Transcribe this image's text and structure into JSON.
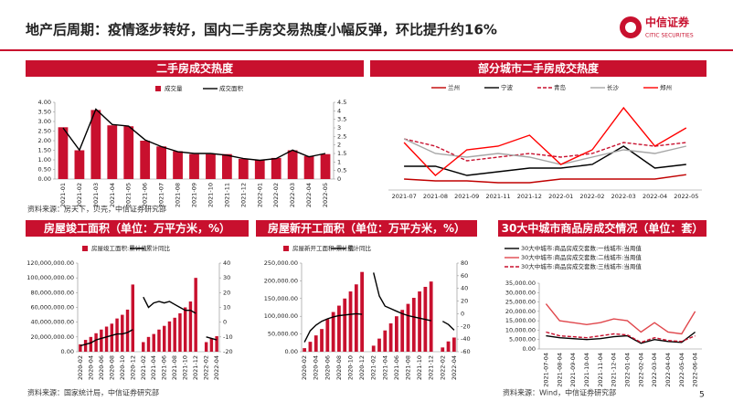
{
  "header": {
    "title": "地产后周期：疫情逐步转好，国内二手房交易热度小幅反弹，环比提升约16%",
    "logo_name": "中信证券",
    "logo_en": "CITIC SECURITIES"
  },
  "page_number": "5",
  "sources": [
    "资料来源：房天下，贝壳，中信证券研究部",
    "资料来源：国家统计局，中信证券研究部",
    "资料来源：Wind，中信证券研究部"
  ],
  "chart_data": [
    {
      "type": "bar",
      "title": "二手房成交热度",
      "categories": [
        "2021-01",
        "2021-02",
        "2021-03",
        "2021-04",
        "2021-05",
        "2021-06",
        "2021-07",
        "2021-08",
        "2021-09",
        "2021-10",
        "2021-11",
        "2021-12",
        "2022-01",
        "2022-02",
        "2022-03",
        "2022-04",
        "2022-05"
      ],
      "series": [
        {
          "name": "成交量",
          "type": "bar",
          "color": "#c8102e",
          "values": [
            2.7,
            1.5,
            3.6,
            2.8,
            2.75,
            2.0,
            1.7,
            1.45,
            1.3,
            1.3,
            1.3,
            1.05,
            1.0,
            1.1,
            1.5,
            1.2,
            1.3
          ]
        },
        {
          "name": "成交面积",
          "type": "line",
          "axis": "y2",
          "color": "#000000",
          "values": [
            3.0,
            1.7,
            4.1,
            3.2,
            3.1,
            2.3,
            1.9,
            1.6,
            1.5,
            1.5,
            1.4,
            1.2,
            1.1,
            1.2,
            1.7,
            1.3,
            1.5
          ]
        }
      ],
      "ylim": [
        0,
        4
      ],
      "yticks": [
        {
          "value": 0,
          "label": "0.00"
        },
        {
          "value": 0.5,
          "label": "0.50"
        },
        {
          "value": 1,
          "label": "1.00"
        },
        {
          "value": 1.5,
          "label": "1.50"
        },
        {
          "value": 2,
          "label": "2.00"
        },
        {
          "value": 2.5,
          "label": "2.50"
        },
        {
          "value": 3,
          "label": "3.00"
        },
        {
          "value": 3.5,
          "label": "3.50"
        },
        {
          "value": 4,
          "label": "4.00"
        }
      ],
      "y2lim": [
        0,
        4.5
      ],
      "y2ticks": [
        0,
        0.5,
        1,
        1.5,
        2,
        2.5,
        3,
        3.5,
        4,
        4.5
      ]
    },
    {
      "type": "line",
      "title": "部分城市二手房成交热度",
      "categories": [
        "2021-07",
        "2021-08",
        "2021-09",
        "2021-11",
        "2021-12",
        "2022-01",
        "2022-02",
        "2022-03",
        "2022-04",
        "2022-05"
      ],
      "series": [
        {
          "name": "兰州",
          "color": "#c00000",
          "values": [
            300,
            250,
            250,
            200,
            200,
            300,
            300,
            300,
            300,
            420
          ]
        },
        {
          "name": "宁波",
          "color": "#000000",
          "values": [
            650,
            650,
            400,
            500,
            600,
            600,
            700,
            1200,
            600,
            700
          ]
        },
        {
          "name": "青岛",
          "color": "#c8102e",
          "dashed": true,
          "values": [
            1400,
            1200,
            800,
            900,
            1000,
            900,
            1000,
            1300,
            1200,
            1300
          ]
        },
        {
          "name": "长沙",
          "color": "#a6a6a6",
          "values": [
            1400,
            1000,
            900,
            1000,
            900,
            700,
            900,
            1100,
            1000,
            1200
          ]
        },
        {
          "name": "郑州",
          "color": "#ff0000",
          "values": [
            1300,
            400,
            1100,
            1200,
            1500,
            700,
            1100,
            2250,
            1200,
            1700
          ]
        }
      ],
      "ylim": [
        0,
        2500
      ]
    },
    {
      "type": "bar",
      "title": "房屋竣工面积（单位：万平方米，%）",
      "categories": [
        "2020-02",
        null,
        "2020-04",
        null,
        "2020-06",
        null,
        "2020-08",
        null,
        "2020-10",
        null,
        "2020-12",
        null,
        "2021-02",
        null,
        "2021-04",
        null,
        "2021-06",
        null,
        "2021-08",
        null,
        "2021-10",
        null,
        "2021-12",
        null,
        "2022-02",
        null,
        "2022-04"
      ],
      "series": [
        {
          "name": "房屋竣工面积:累计值",
          "type": "bar",
          "color": "#c8102e",
          "values": [
            10000000,
            16000000,
            20000000,
            25000000,
            30000000,
            34000000,
            38000000,
            45000000,
            50000000,
            57000000,
            91000000,
            null,
            13000000,
            20000000,
            24000000,
            30000000,
            35000000,
            41000000,
            46000000,
            52000000,
            60000000,
            68000000,
            100000000,
            null,
            13000000,
            18000000,
            21000000
          ]
        },
        {
          "name": "累计同比",
          "type": "line",
          "axis": "y2",
          "color": "#000000",
          "values": [
            -16,
            -15,
            -14,
            -12,
            -11,
            -10,
            -9,
            -8,
            -8,
            -7,
            -5,
            null,
            17,
            10,
            13,
            14,
            13,
            14,
            12,
            10,
            8,
            8,
            6,
            null,
            -10,
            -11,
            -12
          ]
        }
      ],
      "ylim": [
        0,
        120000000
      ],
      "yticks": [
        {
          "value": 0,
          "label": "0.00"
        },
        {
          "value": 20000000,
          "label": "20,000,000.00"
        },
        {
          "value": 40000000,
          "label": "40,000,000.00"
        },
        {
          "value": 60000000,
          "label": "60,000,000.00"
        },
        {
          "value": 80000000,
          "label": "80,000,000.00"
        },
        {
          "value": 100000000,
          "label": "100,000,000.00"
        },
        {
          "value": 120000000,
          "label": "120,000,000.00"
        }
      ],
      "y2lim": [
        -20,
        40
      ],
      "y2ticks": [
        -20,
        -10,
        0,
        10,
        20,
        30,
        40
      ]
    },
    {
      "type": "bar",
      "title": "房屋新开工面积（单位：万平方米，%）",
      "categories": [
        "2020-02",
        null,
        "2020-04",
        null,
        "2020-06",
        null,
        "2020-08",
        null,
        "2020-10",
        null,
        "2020-12",
        null,
        "2021-02",
        null,
        "2021-04",
        null,
        "2021-06",
        null,
        "2021-08",
        null,
        "2021-10",
        null,
        "2021-12",
        null,
        "2022-02",
        null,
        "2022-04"
      ],
      "series": [
        {
          "name": "房屋新开工面积:累计值",
          "type": "bar",
          "color": "#c8102e",
          "values": [
            10000,
            28000,
            46000,
            64000,
            92000,
            112000,
            130000,
            150000,
            170000,
            190000,
            225000,
            null,
            17000,
            37000,
            60000,
            80000,
            100000,
            118000,
            135000,
            152000,
            170000,
            183000,
            198000,
            null,
            12000,
            29000,
            40000
          ]
        },
        {
          "name": "累计同比",
          "type": "line",
          "axis": "y2",
          "color": "#000000",
          "values": [
            -45,
            -27,
            -18,
            -12,
            -8,
            -5,
            -3,
            -2,
            -1,
            0,
            -1,
            null,
            65,
            28,
            12,
            8,
            4,
            0,
            -3,
            -5,
            -7,
            -9,
            -11,
            null,
            -12,
            -17,
            -26
          ]
        }
      ],
      "ylim": [
        0,
        250000
      ],
      "yticks": [
        {
          "value": 0,
          "label": "0.00"
        },
        {
          "value": 50000,
          "label": "50,000.00"
        },
        {
          "value": 100000,
          "label": "100,000.00"
        },
        {
          "value": 150000,
          "label": "150,000.00"
        },
        {
          "value": 200000,
          "label": "200,000.00"
        },
        {
          "value": 250000,
          "label": "250,000.00"
        }
      ],
      "y2lim": [
        -60,
        80
      ],
      "y2ticks": [
        -60,
        -40,
        -20,
        0,
        20,
        40,
        60,
        80
      ]
    },
    {
      "type": "line",
      "title": "30大中城市商品房成交情况（单位：套）",
      "categories": [
        "2021-07-04",
        "2021-08-04",
        "2021-09-04",
        "2021-10-04",
        "2021-11-04",
        "2021-12-04",
        "2022-01-04",
        "2022-02-04",
        "2022-03-04",
        "2022-04-04",
        "2022-05-04",
        "2022-06-04"
      ],
      "series": [
        {
          "name": "30大中城市:商品房成交套数:一线城市:当周值",
          "color": "#000000",
          "values": [
            7000,
            6000,
            5500,
            5000,
            5500,
            6500,
            7000,
            3000,
            5000,
            4000,
            3500,
            9000
          ]
        },
        {
          "name": "30大中城市:商品房成交套数:二线城市:当周值",
          "color": "#e0474c",
          "values": [
            24000,
            15000,
            14000,
            13000,
            14000,
            16000,
            15000,
            9000,
            14000,
            9000,
            8000,
            20000
          ]
        },
        {
          "name": "30大中城市:商品房成交套数:三线城市:当周值",
          "color": "#c8102e",
          "dashed": true,
          "values": [
            9000,
            7000,
            6500,
            6000,
            7000,
            8000,
            7500,
            3500,
            6000,
            4500,
            4000,
            7000
          ]
        }
      ],
      "ylim": [
        0,
        35000
      ],
      "yticks": [
        {
          "value": 0,
          "label": "0.00"
        },
        {
          "value": 5000,
          "label": "5,000.00"
        },
        {
          "value": 10000,
          "label": "10,000.00"
        },
        {
          "value": 15000,
          "label": "15,000.00"
        },
        {
          "value": 20000,
          "label": "20,000.00"
        },
        {
          "value": 25000,
          "label": "25,000.00"
        },
        {
          "value": 30000,
          "label": "30,000.00"
        },
        {
          "value": 35000,
          "label": "35,000.00"
        }
      ]
    }
  ]
}
